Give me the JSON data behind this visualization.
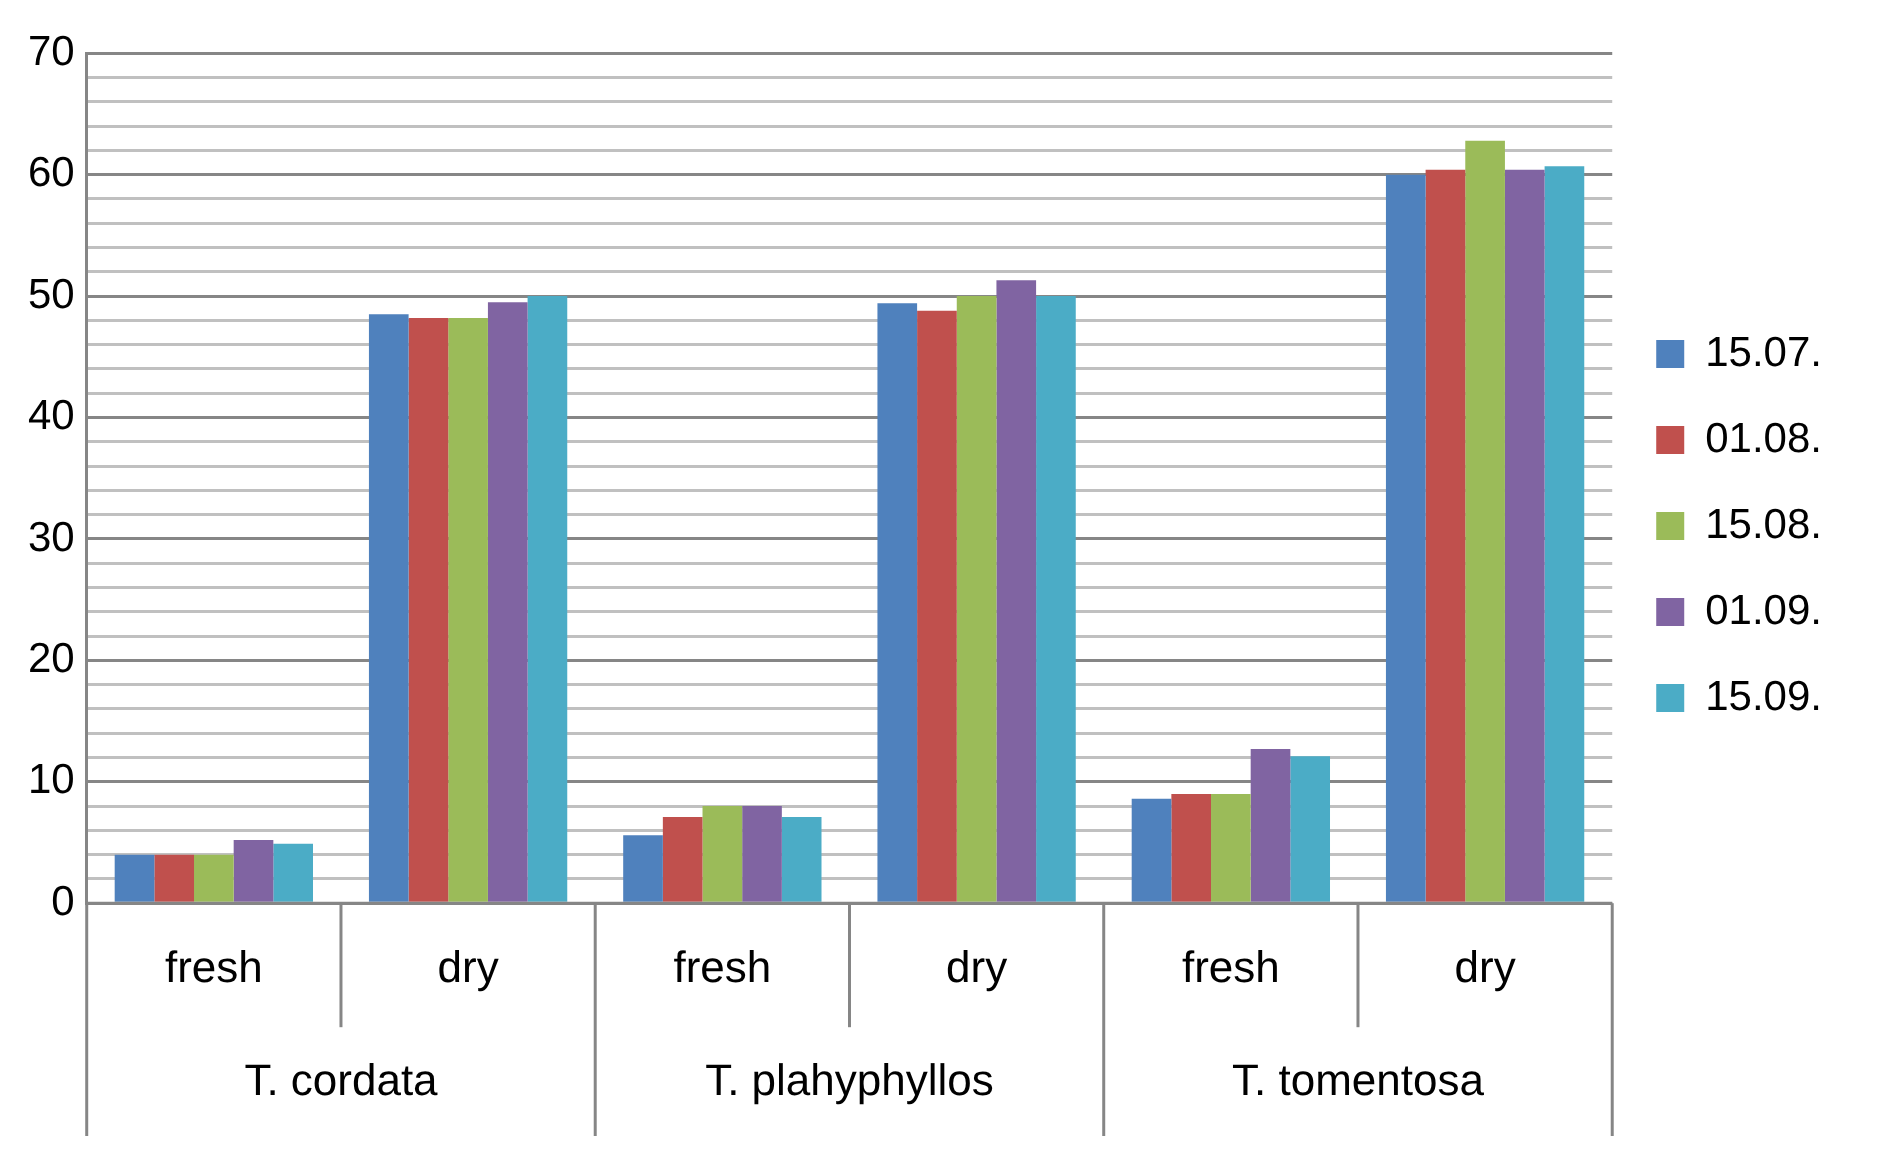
{
  "chart_data": {
    "type": "bar",
    "categories": [
      "fresh",
      "dry",
      "fresh",
      "dry",
      "fresh",
      "dry"
    ],
    "annotations": [
      "T. cordata",
      "T. plahyphyllos",
      "T. tomentosa"
    ],
    "series": [
      {
        "name": "15.07.",
        "color": "#4f81bd",
        "values": [
          4.0,
          48.5,
          5.6,
          49.4,
          8.6,
          60.0
        ]
      },
      {
        "name": "01.08.",
        "color": "#c0504d",
        "values": [
          4.0,
          48.2,
          7.1,
          48.8,
          9.0,
          60.4
        ]
      },
      {
        "name": "15.08.",
        "color": "#9bbb59",
        "values": [
          4.0,
          48.2,
          8.0,
          50.0,
          9.0,
          62.8
        ]
      },
      {
        "name": "01.09.",
        "color": "#8064a2",
        "values": [
          5.2,
          49.5,
          8.0,
          51.3,
          12.7,
          60.4
        ]
      },
      {
        "name": "15.09.",
        "color": "#4bacc6",
        "values": [
          4.9,
          50.0,
          7.1,
          50.0,
          12.1,
          60.7
        ]
      }
    ],
    "ylim": [
      0,
      70
    ],
    "yticks": [
      0,
      {
        "value": 2,
        "label": null
      },
      {
        "value": 4,
        "label": null
      },
      {
        "value": 6,
        "label": null
      },
      {
        "value": 8,
        "label": null
      },
      10,
      {
        "value": 12,
        "label": null
      },
      {
        "value": 14,
        "label": null
      },
      {
        "value": 16,
        "label": null
      },
      {
        "value": 18,
        "label": null
      },
      20,
      {
        "value": 22,
        "label": null
      },
      {
        "value": 24,
        "label": null
      },
      {
        "value": 26,
        "label": null
      },
      {
        "value": 28,
        "label": null
      },
      30,
      {
        "value": 32,
        "label": null
      },
      {
        "value": 34,
        "label": null
      },
      {
        "value": 36,
        "label": null
      },
      {
        "value": 38,
        "label": null
      },
      40,
      {
        "value": 42,
        "label": null
      },
      {
        "value": 44,
        "label": null
      },
      {
        "value": 46,
        "label": null
      },
      {
        "value": 48,
        "label": null
      },
      50,
      {
        "value": 52,
        "label": null
      },
      {
        "value": 54,
        "label": null
      },
      {
        "value": 56,
        "label": null
      },
      {
        "value": 58,
        "label": null
      },
      60,
      {
        "value": 62,
        "label": null
      },
      {
        "value": 64,
        "label": null
      },
      {
        "value": 66,
        "label": null
      },
      {
        "value": 68,
        "label": null
      },
      70
    ],
    "grid": true,
    "legend": "right"
  }
}
